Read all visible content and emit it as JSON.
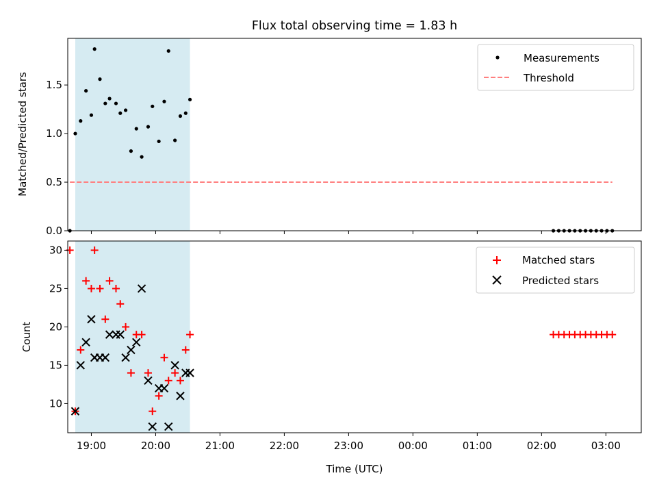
{
  "figure": {
    "title": "Flux total observing time = 1.83 h",
    "xlabel": "Time (UTC)"
  },
  "chart_data": [
    {
      "type": "scatter",
      "panel": "top",
      "title": "Flux total observing time = 1.83 h",
      "ylabel": "Matched/Predicted stars",
      "xlabel": "",
      "x_unit": "hours since midnight UTC of the first night",
      "xlim": [
        "18:38",
        "03:33"
      ],
      "ylim": [
        0,
        1.98
      ],
      "yticks": [
        0.0,
        0.5,
        1.0,
        1.5
      ],
      "legend_position": "upper right",
      "shaded_region": {
        "x_start": "18:45",
        "x_end": "20:32",
        "color": "#add8e6"
      },
      "series": [
        {
          "name": "Measurements",
          "marker": "dot",
          "color": "#000000",
          "points": [
            [
              "18:40",
              0.0
            ],
            [
              "18:45",
              1.0
            ],
            [
              "18:50",
              1.13
            ],
            [
              "18:55",
              1.44
            ],
            [
              "19:00",
              1.19
            ],
            [
              "19:03",
              1.87
            ],
            [
              "19:08",
              1.56
            ],
            [
              "19:13",
              1.31
            ],
            [
              "19:17",
              1.36
            ],
            [
              "19:23",
              1.31
            ],
            [
              "19:27",
              1.21
            ],
            [
              "19:32",
              1.24
            ],
            [
              "19:37",
              0.82
            ],
            [
              "19:42",
              1.05
            ],
            [
              "19:47",
              0.76
            ],
            [
              "19:53",
              1.07
            ],
            [
              "19:57",
              1.28
            ],
            [
              "20:03",
              0.92
            ],
            [
              "20:08",
              1.33
            ],
            [
              "20:12",
              1.85
            ],
            [
              "20:18",
              0.93
            ],
            [
              "20:23",
              1.18
            ],
            [
              "20:28",
              1.21
            ],
            [
              "20:32",
              1.35
            ],
            [
              "02:11",
              0.0
            ],
            [
              "02:16",
              0.0
            ],
            [
              "02:21",
              0.0
            ],
            [
              "02:26",
              0.0
            ],
            [
              "02:31",
              0.0
            ],
            [
              "02:36",
              0.0
            ],
            [
              "02:41",
              0.0
            ],
            [
              "02:46",
              0.0
            ],
            [
              "02:51",
              0.0
            ],
            [
              "02:56",
              0.0
            ],
            [
              "03:01",
              0.0
            ],
            [
              "03:06",
              0.0
            ]
          ]
        },
        {
          "name": "Threshold",
          "marker": "dashed-line",
          "color": "#ff7f7f",
          "points": [
            [
              "18:40",
              0.5
            ],
            [
              "03:06",
              0.5
            ]
          ]
        }
      ]
    },
    {
      "type": "scatter",
      "panel": "bottom",
      "xlabel": "Time (UTC)",
      "ylabel": "Count",
      "x_unit": "hours since midnight UTC of the first night",
      "xlim": [
        "18:38",
        "03:33"
      ],
      "ylim": [
        6.2,
        31.2
      ],
      "yticks": [
        10,
        15,
        20,
        25,
        30
      ],
      "xticks": [
        "19:00",
        "20:00",
        "21:00",
        "22:00",
        "23:00",
        "00:00",
        "01:00",
        "02:00",
        "03:00"
      ],
      "legend_position": "upper right",
      "shaded_region": {
        "x_start": "18:45",
        "x_end": "20:32",
        "color": "#add8e6"
      },
      "series": [
        {
          "name": "Matched stars",
          "marker": "plus",
          "color": "#ff0000",
          "points": [
            [
              "18:40",
              30
            ],
            [
              "18:45",
              9
            ],
            [
              "18:50",
              17
            ],
            [
              "18:55",
              26
            ],
            [
              "19:00",
              25
            ],
            [
              "19:03",
              30
            ],
            [
              "19:08",
              25
            ],
            [
              "19:13",
              21
            ],
            [
              "19:17",
              26
            ],
            [
              "19:23",
              25
            ],
            [
              "19:27",
              23
            ],
            [
              "19:32",
              20
            ],
            [
              "19:37",
              14
            ],
            [
              "19:42",
              19
            ],
            [
              "19:47",
              19
            ],
            [
              "19:53",
              14
            ],
            [
              "19:57",
              9
            ],
            [
              "20:03",
              11
            ],
            [
              "20:08",
              16
            ],
            [
              "20:12",
              13
            ],
            [
              "20:18",
              14
            ],
            [
              "20:23",
              13
            ],
            [
              "20:28",
              17
            ],
            [
              "20:32",
              19
            ],
            [
              "02:11",
              19
            ],
            [
              "02:16",
              19
            ],
            [
              "02:21",
              19
            ],
            [
              "02:26",
              19
            ],
            [
              "02:31",
              19
            ],
            [
              "02:36",
              19
            ],
            [
              "02:41",
              19
            ],
            [
              "02:46",
              19
            ],
            [
              "02:51",
              19
            ],
            [
              "02:56",
              19
            ],
            [
              "03:01",
              19
            ],
            [
              "03:06",
              19
            ]
          ]
        },
        {
          "name": "Predicted stars",
          "marker": "x",
          "color": "#000000",
          "points": [
            [
              "18:45",
              9
            ],
            [
              "18:50",
              15
            ],
            [
              "18:55",
              18
            ],
            [
              "19:00",
              21
            ],
            [
              "19:03",
              16
            ],
            [
              "19:08",
              16
            ],
            [
              "19:13",
              16
            ],
            [
              "19:17",
              19
            ],
            [
              "19:23",
              19
            ],
            [
              "19:27",
              19
            ],
            [
              "19:32",
              16
            ],
            [
              "19:37",
              17
            ],
            [
              "19:42",
              18
            ],
            [
              "19:47",
              25
            ],
            [
              "19:53",
              13
            ],
            [
              "19:57",
              7
            ],
            [
              "20:03",
              12
            ],
            [
              "20:08",
              12
            ],
            [
              "20:12",
              7
            ],
            [
              "20:18",
              15
            ],
            [
              "20:23",
              11
            ],
            [
              "20:28",
              14
            ],
            [
              "20:32",
              14
            ]
          ]
        }
      ]
    }
  ]
}
